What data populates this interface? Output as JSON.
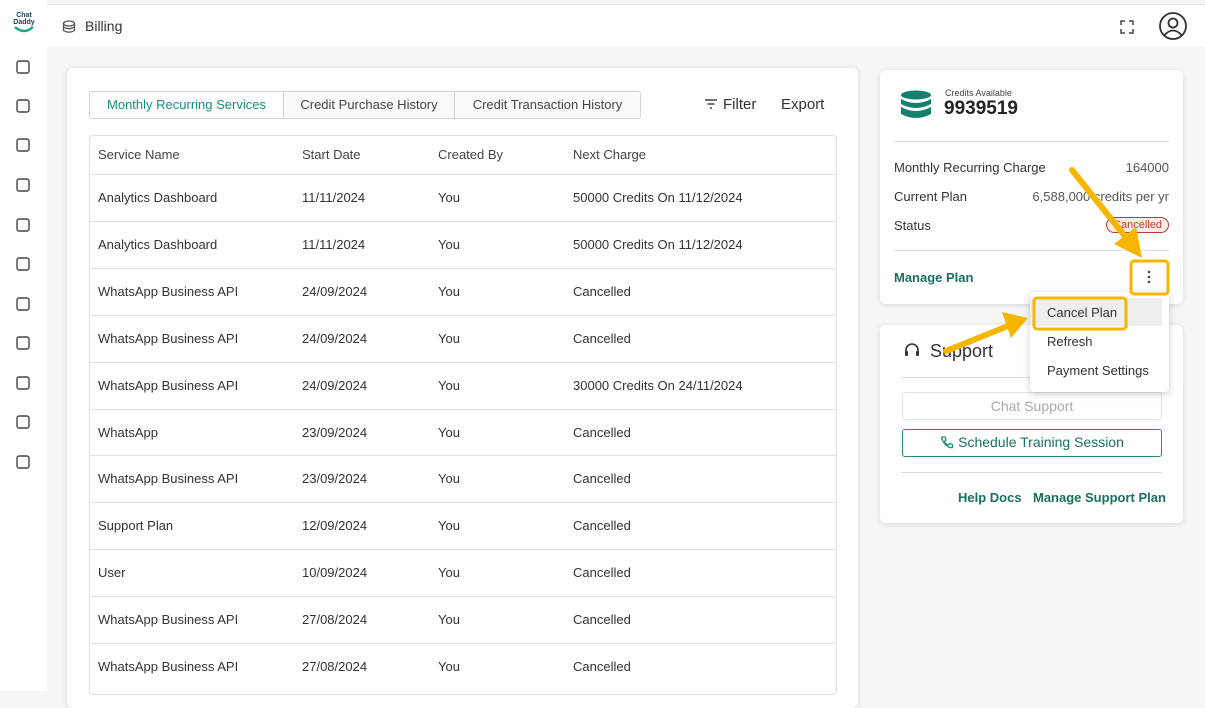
{
  "logo": {
    "line1": "Chat",
    "line2": "Daddy"
  },
  "header": {
    "title": "Billing"
  },
  "tabs": [
    "Monthly Recurring Services",
    "Credit Purchase History",
    "Credit Transaction History"
  ],
  "toolbar": {
    "filter": "Filter",
    "export": "Export"
  },
  "table": {
    "columns": [
      "Service Name",
      "Start Date",
      "Created By",
      "Next Charge"
    ],
    "rows": [
      [
        "Analytics Dashboard",
        "11/11/2024",
        "You",
        "50000 Credits On 11/12/2024"
      ],
      [
        "Analytics Dashboard",
        "11/11/2024",
        "You",
        "50000 Credits On 11/12/2024"
      ],
      [
        "WhatsApp Business API",
        "24/09/2024",
        "You",
        "Cancelled"
      ],
      [
        "WhatsApp Business API",
        "24/09/2024",
        "You",
        "Cancelled"
      ],
      [
        "WhatsApp Business API",
        "24/09/2024",
        "You",
        "30000 Credits On 24/11/2024"
      ],
      [
        "WhatsApp",
        "23/09/2024",
        "You",
        "Cancelled"
      ],
      [
        "WhatsApp Business API",
        "23/09/2024",
        "You",
        "Cancelled"
      ],
      [
        "Support Plan",
        "12/09/2024",
        "You",
        "Cancelled"
      ],
      [
        "User",
        "10/09/2024",
        "You",
        "Cancelled"
      ],
      [
        "WhatsApp Business API",
        "27/08/2024",
        "You",
        "Cancelled"
      ],
      [
        "WhatsApp Business API",
        "27/08/2024",
        "You",
        "Cancelled"
      ]
    ]
  },
  "credits": {
    "label": "Credits Available",
    "value": "9939519",
    "details": [
      {
        "label": "Monthly Recurring Charge",
        "value": "164000"
      },
      {
        "label": "Current Plan",
        "value": "6,588,000 credits per yr"
      },
      {
        "label": "Status",
        "value": "Cancelled"
      }
    ],
    "manage": "Manage Plan"
  },
  "menu": [
    "Cancel Plan",
    "Refresh",
    "Payment Settings"
  ],
  "support": {
    "title": "Support",
    "chat": "Chat Support",
    "training": "Schedule Training Session",
    "help_docs": "Help Docs",
    "manage": "Manage Support Plan"
  }
}
